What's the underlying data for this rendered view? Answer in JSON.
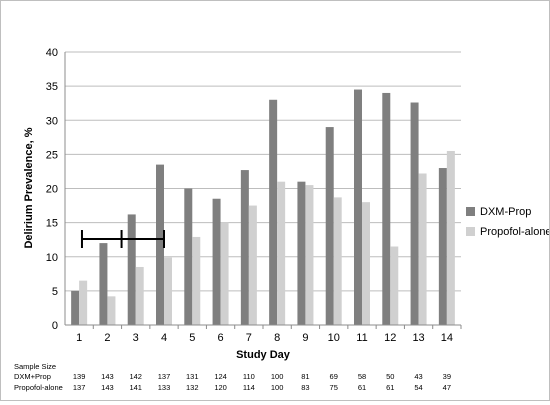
{
  "chart_data": {
    "type": "bar",
    "xlabel": "Study Day",
    "ylabel": "Delirium Prevalence, %",
    "ylim": [
      0,
      40
    ],
    "yticks": [
      "0",
      "5",
      "10",
      "15",
      "20",
      "25",
      "30",
      "35",
      "40"
    ],
    "categories": [
      "1",
      "2",
      "3",
      "4",
      "5",
      "6",
      "7",
      "8",
      "9",
      "10",
      "11",
      "12",
      "13",
      "14"
    ],
    "grid": true,
    "legend_position": "right",
    "series": [
      {
        "name": "DXM-Prop",
        "color": "#7f7f7f",
        "values": [
          5,
          12,
          16.2,
          23.5,
          20,
          18.5,
          22.7,
          33,
          21,
          29,
          34.5,
          34,
          32.6,
          23
        ]
      },
      {
        "name": "Propofol-alone",
        "color": "#d0d0d0",
        "values": [
          6.5,
          4.2,
          8.5,
          9.9,
          12.9,
          15,
          17.5,
          21,
          20.5,
          18.7,
          18,
          11.5,
          22.2,
          25.5
        ]
      }
    ],
    "annotation": {
      "type": "horizontal-interval",
      "y": 12.6,
      "x_start": 1.1,
      "x_end": 4,
      "x_mid": 2.5
    },
    "sample_size": {
      "title": "Sample Size",
      "rows": [
        {
          "label": "DXM+Prop",
          "values": [
            "139",
            "143",
            "142",
            "137",
            "131",
            "124",
            "110",
            "100",
            "81",
            "69",
            "58",
            "50",
            "43",
            "39"
          ]
        },
        {
          "label": "Propofol-alone",
          "values": [
            "137",
            "143",
            "141",
            "133",
            "132",
            "120",
            "114",
            "100",
            "83",
            "75",
            "61",
            "61",
            "54",
            "47"
          ]
        }
      ]
    }
  }
}
